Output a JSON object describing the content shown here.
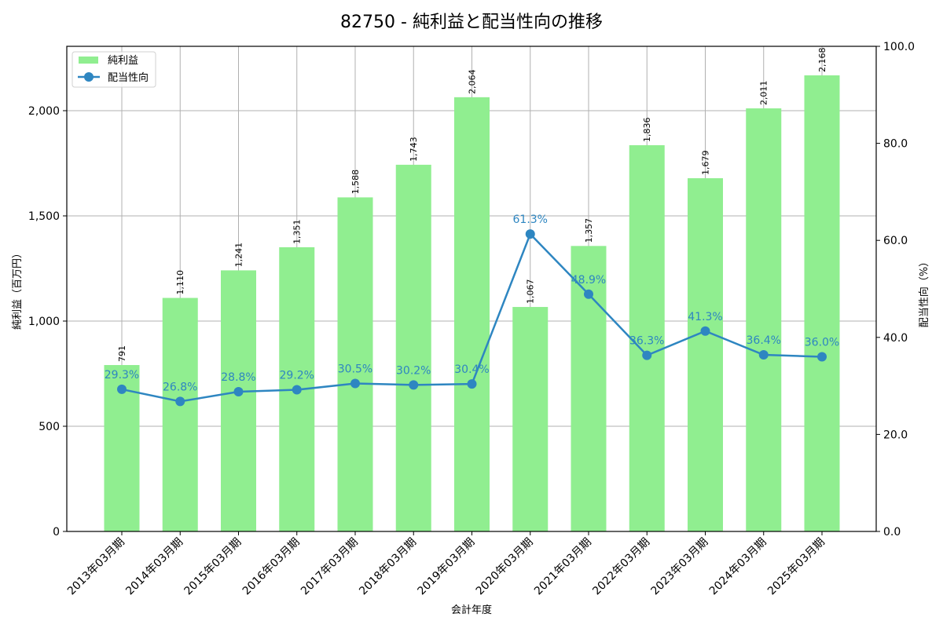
{
  "title": "82750 - 純利益と配当性向の推移",
  "chart_data": {
    "type": "bar+line",
    "title": "82750 - 純利益と配当性向の推移",
    "xlabel": "会計年度",
    "ylabel_left": "純利益（百万円）",
    "ylabel_right": "配当性向（%）",
    "categories": [
      "2013年03月期",
      "2014年03月期",
      "2015年03月期",
      "2016年03月期",
      "2017年03月期",
      "2018年03月期",
      "2019年03月期",
      "2020年03月期",
      "2021年03月期",
      "2022年03月期",
      "2023年03月期",
      "2024年03月期",
      "2025年03月期"
    ],
    "series": [
      {
        "name": "純利益",
        "type": "bar",
        "axis": "left",
        "color": "#90ee90",
        "values": [
          791,
          1110,
          1241,
          1351,
          1588,
          1743,
          2064,
          1067,
          1357,
          1836,
          1679,
          2011,
          2168
        ],
        "labels": [
          "791",
          "1,110",
          "1,241",
          "1,351",
          "1,588",
          "1,743",
          "2,064",
          "1,067",
          "1,357",
          "1,836",
          "1,679",
          "2,011",
          "2,168"
        ]
      },
      {
        "name": "配当性向",
        "type": "line",
        "axis": "right",
        "color": "#2e86c1",
        "values": [
          29.3,
          26.8,
          28.8,
          29.2,
          30.5,
          30.2,
          30.4,
          61.3,
          48.9,
          36.3,
          41.3,
          36.4,
          36.0
        ],
        "labels": [
          "29.3%",
          "26.8%",
          "28.8%",
          "29.2%",
          "30.5%",
          "30.2%",
          "30.4%",
          "61.3%",
          "48.9%",
          "36.3%",
          "41.3%",
          "36.4%",
          "36.0%"
        ]
      }
    ],
    "ylim_left": [
      0,
      2306
    ],
    "yticks_left": [
      0,
      500,
      1000,
      1500,
      2000
    ],
    "ytick_labels_left": [
      "0",
      "500",
      "1,000",
      "1,500",
      "2,000"
    ],
    "ylim_right": [
      0,
      100
    ],
    "yticks_right": [
      0,
      20,
      40,
      60,
      80,
      100
    ],
    "ytick_labels_right": [
      "0.0",
      "20.0",
      "40.0",
      "60.0",
      "80.0",
      "100.0"
    ],
    "grid": true,
    "legend_position": "upper left",
    "legend": [
      "純利益",
      "配当性向"
    ]
  }
}
